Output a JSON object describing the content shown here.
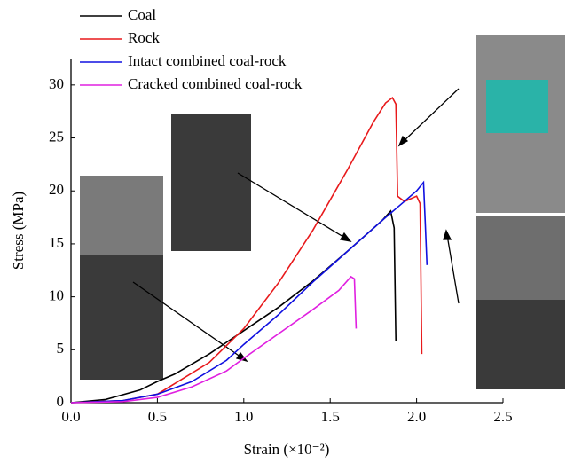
{
  "chart_data": {
    "type": "line",
    "x_label": "Strain (×10⁻²)",
    "y_label": "Stress (MPa)",
    "xlim": [
      0,
      2.5
    ],
    "ylim": [
      0,
      32.5
    ],
    "xticks": [
      {
        "value": 0,
        "label": "0.0"
      },
      0.5,
      {
        "value": 1,
        "label": "1.0"
      },
      1.5,
      {
        "value": 2,
        "label": "2.0"
      },
      2.5
    ],
    "yticks": [
      0,
      5,
      10,
      15,
      20,
      25,
      30
    ],
    "series": [
      {
        "name": "Coal",
        "color": "#000000",
        "x": [
          0,
          0.2,
          0.4,
          0.5,
          0.6,
          0.8,
          1.0,
          1.2,
          1.4,
          1.6,
          1.8,
          1.85,
          1.87,
          1.88
        ],
        "values": [
          0,
          0.3,
          1.2,
          2,
          2.7,
          4.6,
          6.8,
          9,
          11.5,
          14.3,
          17.2,
          18.1,
          16.5,
          5.8
        ]
      },
      {
        "name": "Rock",
        "color": "#e8191b",
        "x": [
          0,
          0.3,
          0.5,
          0.8,
          1.0,
          1.2,
          1.4,
          1.6,
          1.75,
          1.82,
          1.86,
          1.88,
          1.89,
          1.93,
          2.0,
          2.02,
          2.03
        ],
        "values": [
          0,
          0.2,
          0.8,
          3.8,
          7,
          11.3,
          16.3,
          22,
          26.5,
          28.3,
          28.8,
          28.2,
          19.5,
          19,
          19.5,
          18.8,
          4.6
        ]
      },
      {
        "name": "Intact combined coal-rock",
        "color": "#1010e0",
        "x": [
          0,
          0.3,
          0.5,
          0.7,
          0.9,
          1.0,
          1.2,
          1.4,
          1.6,
          1.8,
          1.9,
          2.0,
          2.04,
          2.05,
          2.06
        ],
        "values": [
          0,
          0.2,
          0.8,
          2,
          4,
          5.5,
          8.3,
          11.4,
          14.3,
          17.2,
          18.6,
          20,
          20.8,
          17,
          13
        ]
      },
      {
        "name": "Cracked combined coal-rock",
        "color": "#e020e0",
        "x": [
          0,
          0.3,
          0.5,
          0.7,
          0.9,
          1.0,
          1.2,
          1.4,
          1.55,
          1.62,
          1.64,
          1.65
        ],
        "values": [
          0,
          0.1,
          0.5,
          1.5,
          3,
          4.2,
          6.5,
          8.8,
          10.6,
          11.9,
          11.7,
          7
        ]
      }
    ]
  }
}
